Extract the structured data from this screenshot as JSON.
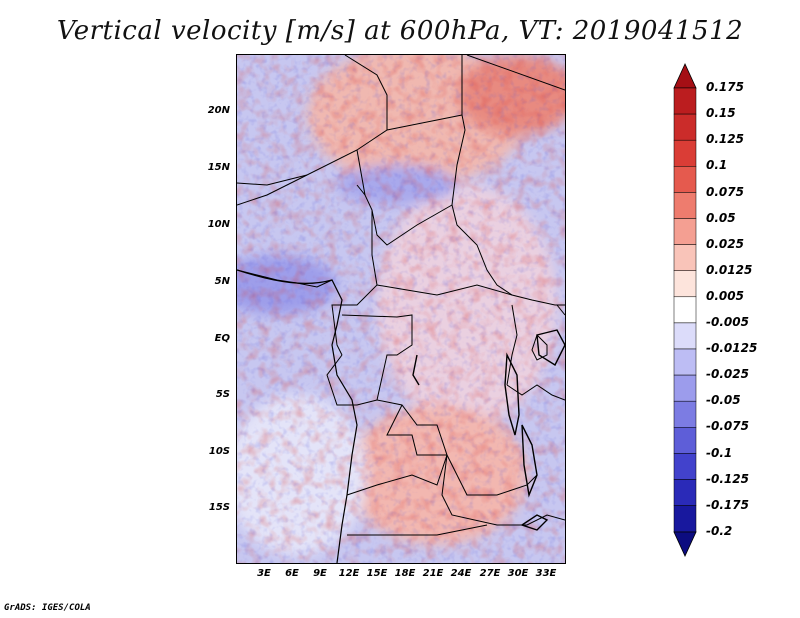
{
  "title": "Vertical velocity [m/s] at 600hPa, VT: 2019041512",
  "footer": "GrADS: IGES/COLA",
  "map": {
    "lat_ticks": [
      "20N",
      "15N",
      "10N",
      "5N",
      "EQ",
      "5S",
      "10S",
      "15S"
    ],
    "lon_ticks": [
      "3E",
      "6E",
      "9E",
      "12E",
      "15E",
      "18E",
      "21E",
      "24E",
      "27E",
      "30E",
      "33E"
    ]
  },
  "colorbar": {
    "labels": [
      "0.175",
      "0.15",
      "0.125",
      "0.1",
      "0.075",
      "0.05",
      "0.025",
      "0.0125",
      "0.005",
      "-0.005",
      "-0.0125",
      "-0.025",
      "-0.05",
      "-0.075",
      "-0.1",
      "-0.125",
      "-0.175",
      "-0.2"
    ],
    "colors": [
      "#a50f15",
      "#bb1d1f",
      "#cb2c2a",
      "#da3d36",
      "#e55a4e",
      "#ee7c6e",
      "#f49f92",
      "#f9c4b9",
      "#fde4dc",
      "#ffffff",
      "#dcdcfa",
      "#bdbdf4",
      "#9c9cec",
      "#7c7ce3",
      "#5e5ed8",
      "#4242cc",
      "#2a2ab8",
      "#18189e",
      "#0c0c80"
    ]
  }
}
